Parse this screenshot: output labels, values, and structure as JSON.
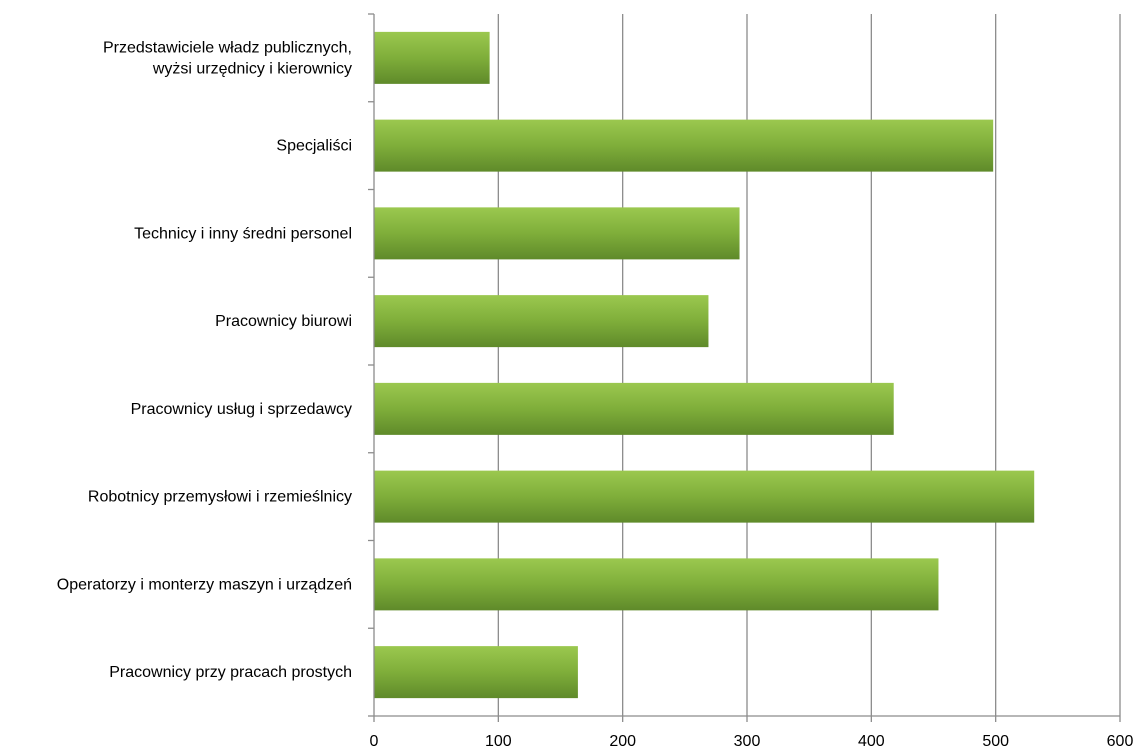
{
  "chart_data": {
    "type": "bar",
    "orientation": "horizontal",
    "categories": [
      [
        "Przedstawiciele władz publicznych,",
        "wyżsi urzędnicy i kierownicy"
      ],
      [
        "Specjaliści"
      ],
      [
        "Technicy i inny średni personel"
      ],
      [
        "Pracownicy biurowi"
      ],
      [
        "Pracownicy usług i sprzedawcy"
      ],
      [
        "Robotnicy przemysłowi i rzemieślnicy"
      ],
      [
        "Operatorzy i monterzy maszyn i urządzeń"
      ],
      [
        "Pracownicy przy pracach prostych"
      ]
    ],
    "values": [
      93,
      498,
      294,
      269,
      418,
      531,
      454,
      164
    ],
    "xlim": [
      0,
      600
    ],
    "xticks": [
      "0",
      "100",
      "200",
      "300",
      "400",
      "500",
      "600"
    ],
    "grid": true,
    "legend": "none",
    "colors": {
      "bar_light": "#9bc84f",
      "bar_mid": "#7fae3a",
      "bar_dark": "#5f8a2a",
      "grid": "#8c8c8c",
      "axis": "#8c8c8c"
    }
  }
}
